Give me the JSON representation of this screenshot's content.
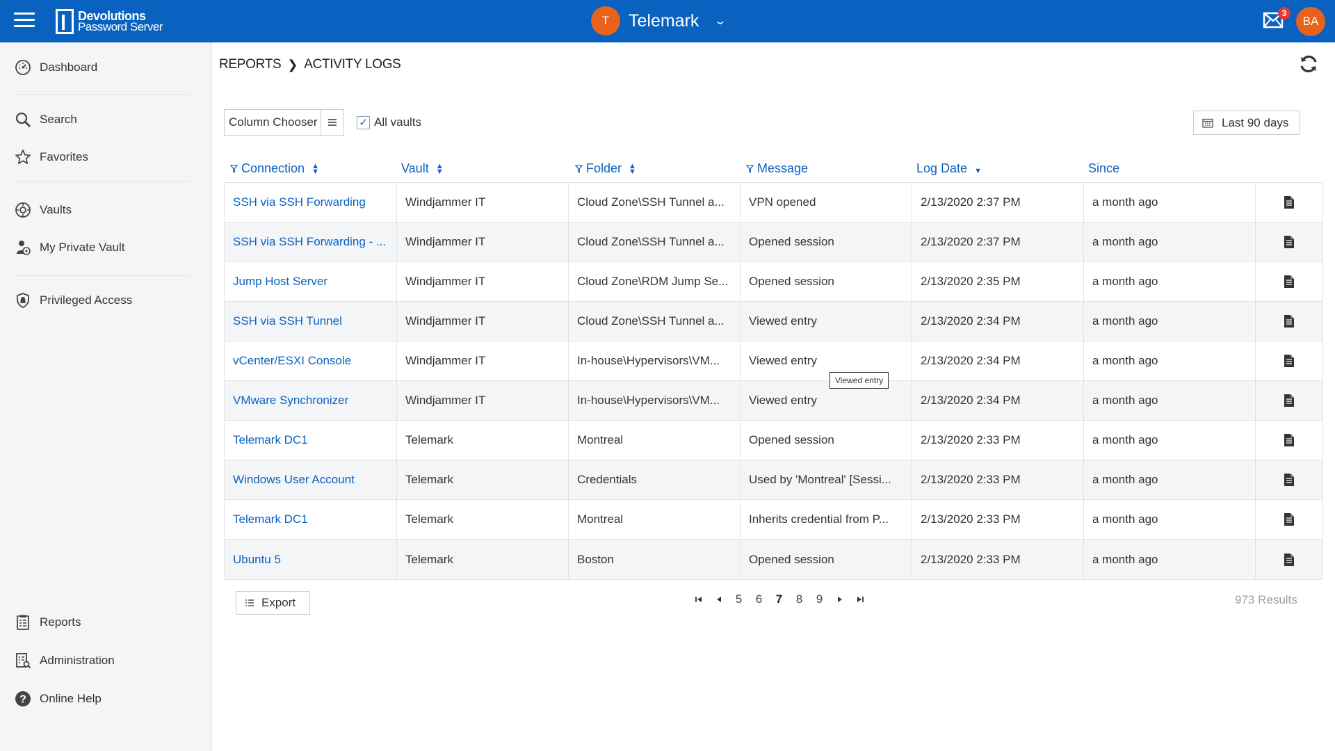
{
  "header": {
    "logo_line1": "Devolutions",
    "logo_line2": "Password Server",
    "vault_initial": "T",
    "vault_name": "Telemark",
    "mail_count": "3",
    "user_initials": "BA"
  },
  "sidebar": {
    "items": [
      {
        "label": "Dashboard",
        "icon": "dashboard-icon"
      },
      {
        "label": "Search",
        "icon": "search-icon"
      },
      {
        "label": "Favorites",
        "icon": "star-icon"
      },
      {
        "label": "Vaults",
        "icon": "vault-icon"
      },
      {
        "label": "My Private Vault",
        "icon": "private-vault-icon"
      },
      {
        "label": "Privileged Access",
        "icon": "shield-icon"
      },
      {
        "label": "Reports",
        "icon": "report-icon"
      },
      {
        "label": "Administration",
        "icon": "administration-icon"
      },
      {
        "label": "Online Help",
        "icon": "help-icon"
      }
    ]
  },
  "breadcrumb": {
    "root": "REPORTS",
    "current": "ACTIVITY LOGS"
  },
  "toolbar": {
    "column_chooser": "Column Chooser",
    "all_vaults": "All vaults",
    "all_vaults_checked": true,
    "date_range": "Last 90 days"
  },
  "table": {
    "headers": [
      "Connection",
      "Vault",
      "Folder",
      "Message",
      "Log Date",
      "Since"
    ],
    "rows": [
      {
        "connection": "SSH via SSH Forwarding",
        "vault": "Windjammer IT",
        "folder": "Cloud Zone\\SSH Tunnel a...",
        "message": "VPN opened",
        "log_date": "2/13/2020 2:37 PM",
        "since": "a month ago"
      },
      {
        "connection": "SSH via SSH Forwarding - ...",
        "vault": "Windjammer IT",
        "folder": "Cloud Zone\\SSH Tunnel a...",
        "message": "Opened session",
        "log_date": "2/13/2020 2:37 PM",
        "since": "a month ago"
      },
      {
        "connection": "Jump Host Server",
        "vault": "Windjammer IT",
        "folder": "Cloud Zone\\RDM Jump Se...",
        "message": "Opened session",
        "log_date": "2/13/2020 2:35 PM",
        "since": "a month ago"
      },
      {
        "connection": "SSH via SSH Tunnel",
        "vault": "Windjammer IT",
        "folder": "Cloud Zone\\SSH Tunnel a...",
        "message": "Viewed entry",
        "log_date": "2/13/2020 2:34 PM",
        "since": "a month ago"
      },
      {
        "connection": "vCenter/ESXI Console",
        "vault": "Windjammer IT",
        "folder": "In-house\\Hypervisors\\VM...",
        "message": "Viewed entry",
        "log_date": "2/13/2020 2:34 PM",
        "since": "a month ago"
      },
      {
        "connection": "VMware Synchronizer",
        "vault": "Windjammer IT",
        "folder": "In-house\\Hypervisors\\VM...",
        "message": "Viewed entry",
        "log_date": "2/13/2020 2:34 PM",
        "since": "a month ago"
      },
      {
        "connection": "Telemark DC1",
        "vault": "Telemark",
        "folder": "Montreal",
        "message": "Opened session",
        "log_date": "2/13/2020 2:33 PM",
        "since": "a month ago"
      },
      {
        "connection": "Windows User Account",
        "vault": "Telemark",
        "folder": "Credentials",
        "message": "Used by 'Montreal' [Sessi...",
        "log_date": "2/13/2020 2:33 PM",
        "since": "a month ago"
      },
      {
        "connection": "Telemark DC1",
        "vault": "Telemark",
        "folder": "Montreal",
        "message": "Inherits credential from P...",
        "log_date": "2/13/2020 2:33 PM",
        "since": "a month ago"
      },
      {
        "connection": "Ubuntu 5",
        "vault": "Telemark",
        "folder": "Boston",
        "message": "Opened session",
        "log_date": "2/13/2020 2:33 PM",
        "since": "a month ago"
      }
    ]
  },
  "tooltip": "Viewed entry",
  "footer": {
    "export_label": "Export",
    "pages": [
      "5",
      "6",
      "7",
      "8",
      "9"
    ],
    "current_page": "7",
    "results": "973 Results"
  },
  "colors": {
    "brand": "#0a62c0",
    "avatar": "#e8621c",
    "badge": "#e53935"
  }
}
